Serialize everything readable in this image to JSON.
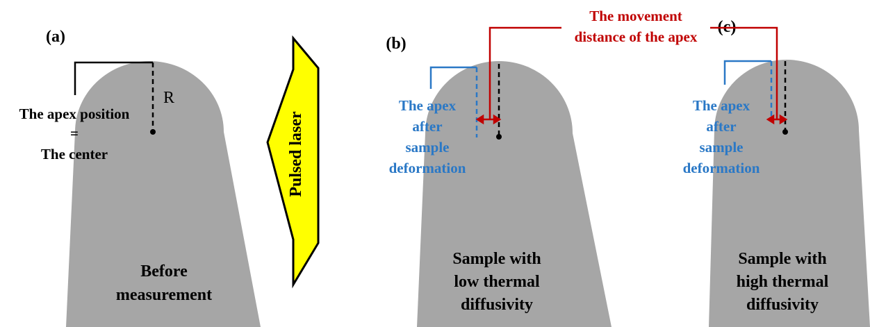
{
  "panels": [
    {
      "label": "(a)",
      "radius_label": "R",
      "apex_note": [
        "The apex position",
        "=",
        "The center"
      ],
      "caption": [
        "Before",
        "measurement"
      ]
    },
    {
      "label": "(b)",
      "apex_note": [
        "The apex",
        "after",
        "sample",
        "deformation"
      ],
      "caption": [
        "Sample with",
        "low thermal",
        "diffusivity"
      ]
    },
    {
      "label": "(c)",
      "apex_note": [
        "The apex",
        "after",
        "sample",
        "deformation"
      ],
      "caption": [
        "Sample with",
        "high thermal",
        "diffusivity"
      ]
    }
  ],
  "laser": "Pulsed laser",
  "movement_note": [
    "The movement",
    "distance of the apex"
  ]
}
